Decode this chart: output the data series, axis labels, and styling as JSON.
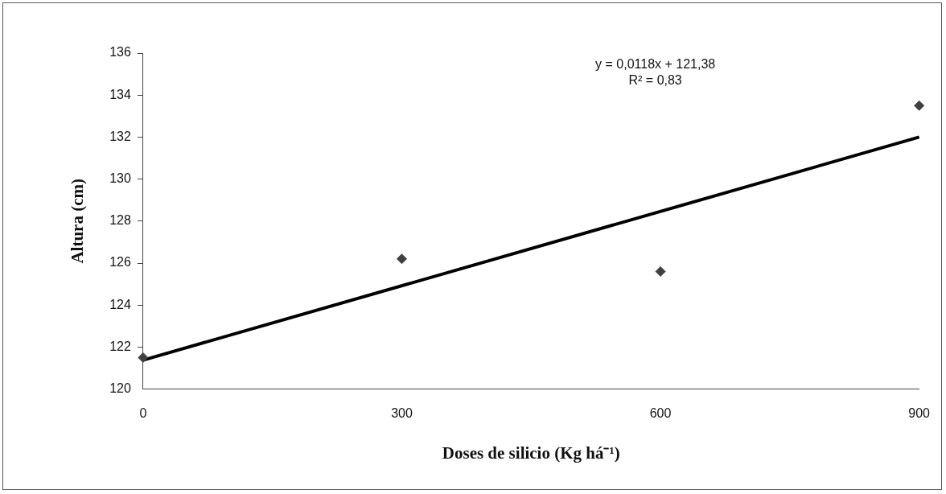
{
  "chart_data": {
    "type": "scatter",
    "xlabel": "Doses de silicio (Kg há⁻¹)",
    "ylabel": "Altura (cm)",
    "x": [
      0,
      300,
      600,
      900
    ],
    "series": [
      {
        "type": "scatter",
        "color": "#404040",
        "values": [
          121.5,
          126.2,
          125.6,
          133.5
        ],
        "marker": "diamond"
      },
      {
        "type": "line",
        "color": "#000000",
        "x": [
          0,
          900
        ],
        "values": [
          121.38,
          132.0
        ],
        "marker": "none",
        "line_style": "solid"
      }
    ],
    "annotations": [
      "y = 0,0118x + 121,38",
      "R² = 0,83"
    ],
    "xlim": [
      0,
      900
    ],
    "xticks": [
      0,
      300,
      600,
      900
    ],
    "ylim": [
      120,
      136
    ],
    "yticks": [
      120,
      122,
      124,
      126,
      128,
      130,
      132,
      134,
      136
    ],
    "grid": false,
    "legend": false
  }
}
